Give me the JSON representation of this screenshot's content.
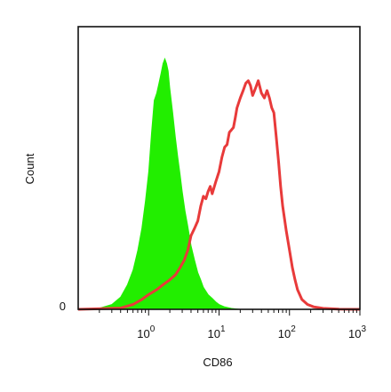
{
  "chart_data": {
    "type": "area",
    "title": "",
    "xlabel": "CD86",
    "ylabel": "Count",
    "x_scale": "log",
    "xlim": [
      0.1,
      1000
    ],
    "ylim": [
      0,
      1.15
    ],
    "grid": false,
    "legend": "none",
    "x_ticks": [
      {
        "base": "10",
        "exp": "0",
        "value": 1
      },
      {
        "base": "10",
        "exp": "1",
        "value": 10
      },
      {
        "base": "10",
        "exp": "2",
        "value": 100
      },
      {
        "base": "10",
        "exp": "3",
        "value": 1000
      }
    ],
    "y_ticks": [
      {
        "label": "0",
        "value": 0
      }
    ],
    "series": [
      {
        "style": "filled",
        "color": "#22ee00",
        "x": [
          0.1,
          0.2,
          0.3,
          0.4,
          0.5,
          0.6,
          0.7,
          0.8,
          0.9,
          1.0,
          1.1,
          1.2,
          1.3,
          1.4,
          1.5,
          1.6,
          1.7,
          1.8,
          1.9,
          2.0,
          2.2,
          2.4,
          2.6,
          2.8,
          3.0,
          3.3,
          3.6,
          4.0,
          4.5,
          5.0,
          5.5,
          6.0,
          7.0,
          8.0,
          9.0,
          10,
          12,
          15,
          20,
          1000
        ],
        "y": [
          0,
          0.005,
          0.02,
          0.05,
          0.1,
          0.16,
          0.24,
          0.33,
          0.44,
          0.56,
          0.72,
          0.85,
          0.88,
          0.92,
          0.96,
          1.0,
          1.02,
          1.0,
          0.97,
          0.9,
          0.8,
          0.7,
          0.62,
          0.55,
          0.48,
          0.4,
          0.34,
          0.26,
          0.2,
          0.15,
          0.12,
          0.09,
          0.06,
          0.045,
          0.03,
          0.02,
          0.01,
          0.004,
          0,
          0
        ]
      },
      {
        "style": "line",
        "color": "#e83a3a",
        "x": [
          0.1,
          0.4,
          0.6,
          0.8,
          1.0,
          1.3,
          1.6,
          2.0,
          2.4,
          2.8,
          3.2,
          3.6,
          4.0,
          4.5,
          5.0,
          5.5,
          6.0,
          6.5,
          7.0,
          7.5,
          8.0,
          9.0,
          10,
          11,
          12,
          13,
          14,
          15,
          16,
          17,
          18,
          20,
          22,
          24,
          26,
          28,
          30,
          33,
          36,
          40,
          44,
          48,
          52,
          56,
          60,
          65,
          70,
          75,
          80,
          90,
          100,
          110,
          120,
          130,
          150,
          180,
          220,
          300,
          500,
          1000
        ],
        "y": [
          0,
          0.005,
          0.02,
          0.04,
          0.06,
          0.08,
          0.1,
          0.12,
          0.14,
          0.17,
          0.2,
          0.24,
          0.3,
          0.33,
          0.36,
          0.42,
          0.46,
          0.45,
          0.48,
          0.5,
          0.47,
          0.52,
          0.56,
          0.62,
          0.66,
          0.67,
          0.72,
          0.73,
          0.74,
          0.78,
          0.82,
          0.86,
          0.89,
          0.92,
          0.93,
          0.91,
          0.87,
          0.9,
          0.93,
          0.88,
          0.86,
          0.89,
          0.86,
          0.82,
          0.8,
          0.7,
          0.6,
          0.5,
          0.42,
          0.32,
          0.24,
          0.17,
          0.12,
          0.08,
          0.04,
          0.02,
          0.01,
          0.004,
          0.001,
          0
        ]
      }
    ]
  }
}
